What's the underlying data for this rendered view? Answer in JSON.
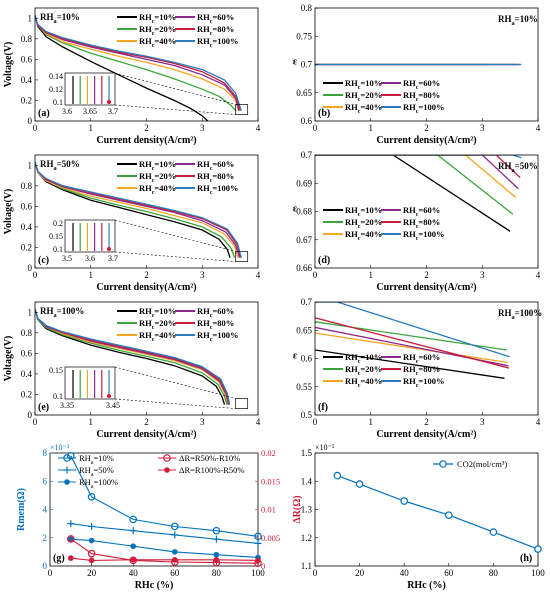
{
  "colors": {
    "rh10": "#000000",
    "rh20": "#3aa53a",
    "rh40": "#f5a623",
    "rh60": "#8e2a8e",
    "rh80": "#c81e3c",
    "rh100": "#2b7bbf",
    "blue": "#0072bd",
    "red": "#d01c3a"
  },
  "legend_names": [
    "RHc=10%",
    "RHc=20%",
    "RHc=40%",
    "RHc=60%",
    "RHc=80%",
    "RHc=100%"
  ],
  "chart_data": [
    {
      "id": "a",
      "type": "line",
      "panel_label": "(a)",
      "annotation": "RHa=10%",
      "xlabel": "Current density(A/cm²)",
      "ylabel": "Voltage(V)",
      "xlim": [
        0,
        4
      ],
      "ylim": [
        0,
        1.1
      ],
      "xticks": [
        0,
        1,
        2,
        3,
        4
      ],
      "yticks": [
        0,
        0.2,
        0.4,
        0.6,
        0.8,
        1
      ],
      "series": [
        {
          "name": "RHc=10%",
          "x": [
            0,
            0.05,
            0.2,
            0.5,
            1,
            1.5,
            2,
            2.5,
            2.8,
            3.0,
            3.1
          ],
          "y": [
            1.03,
            0.92,
            0.82,
            0.72,
            0.58,
            0.45,
            0.32,
            0.2,
            0.12,
            0.05,
            0.0
          ]
        },
        {
          "name": "RHc=20%",
          "x": [
            0,
            0.05,
            0.2,
            0.5,
            1,
            1.5,
            2,
            2.5,
            3.0,
            3.3,
            3.5,
            3.6
          ],
          "y": [
            1.03,
            0.93,
            0.84,
            0.76,
            0.66,
            0.58,
            0.5,
            0.41,
            0.31,
            0.24,
            0.16,
            0.1
          ]
        },
        {
          "name": "RHc=40%",
          "x": [
            0,
            0.05,
            0.2,
            0.5,
            1,
            1.5,
            2,
            2.5,
            3.0,
            3.4,
            3.6,
            3.65
          ],
          "y": [
            1.03,
            0.93,
            0.85,
            0.77,
            0.7,
            0.63,
            0.57,
            0.5,
            0.41,
            0.31,
            0.2,
            0.1
          ]
        },
        {
          "name": "RHc=60%",
          "x": [
            0,
            0.05,
            0.2,
            0.5,
            1,
            1.5,
            2,
            2.5,
            3.0,
            3.4,
            3.6,
            3.66
          ],
          "y": [
            1.03,
            0.93,
            0.86,
            0.79,
            0.72,
            0.66,
            0.6,
            0.54,
            0.45,
            0.35,
            0.22,
            0.1
          ]
        },
        {
          "name": "RHc=80%",
          "x": [
            0,
            0.05,
            0.2,
            0.5,
            1,
            1.5,
            2,
            2.5,
            3.0,
            3.4,
            3.6,
            3.68
          ],
          "y": [
            1.03,
            0.93,
            0.86,
            0.8,
            0.73,
            0.67,
            0.62,
            0.56,
            0.48,
            0.37,
            0.24,
            0.1
          ]
        },
        {
          "name": "RHc=100%",
          "x": [
            0,
            0.05,
            0.2,
            0.5,
            1,
            1.5,
            2,
            2.5,
            3.0,
            3.4,
            3.6,
            3.7
          ],
          "y": [
            1.03,
            0.94,
            0.87,
            0.81,
            0.74,
            0.68,
            0.63,
            0.57,
            0.5,
            0.4,
            0.27,
            0.1
          ]
        }
      ],
      "inset": {
        "xticks": [
          "3.6",
          "3.65",
          "3.7"
        ],
        "yticks": [
          "0.14",
          "0.12",
          "0.1"
        ]
      }
    },
    {
      "id": "b",
      "type": "line",
      "panel_label": "(b)",
      "annotation": "RHa=10%",
      "xlabel": "Current density(A/cm²)",
      "ylabel": "ε",
      "xlim": [
        0,
        4
      ],
      "ylim": [
        0.6,
        0.8
      ],
      "xticks": [
        0,
        1,
        2,
        3,
        4
      ],
      "yticks": [
        0.6,
        0.65,
        0.7,
        0.75,
        0.8
      ],
      "series": [
        {
          "name": "RHc=10%",
          "x": [
            0,
            3.1
          ],
          "y": [
            0.7,
            0.7
          ]
        },
        {
          "name": "RHc=20%",
          "x": [
            0,
            3.6
          ],
          "y": [
            0.7,
            0.7
          ]
        },
        {
          "name": "RHc=40%",
          "x": [
            0,
            3.65
          ],
          "y": [
            0.7,
            0.7
          ]
        },
        {
          "name": "RHc=60%",
          "x": [
            0,
            3.66
          ],
          "y": [
            0.7,
            0.7
          ]
        },
        {
          "name": "RHc=80%",
          "x": [
            0,
            3.68
          ],
          "y": [
            0.7,
            0.7
          ]
        },
        {
          "name": "RHc=100%",
          "x": [
            0,
            3.7
          ],
          "y": [
            0.7,
            0.7
          ]
        }
      ]
    },
    {
      "id": "c",
      "type": "line",
      "panel_label": "(c)",
      "annotation": "RHa=50%",
      "xlabel": "Current density(A/cm²)",
      "ylabel": "Voltage(V)",
      "xlim": [
        0,
        4
      ],
      "ylim": [
        0,
        1.1
      ],
      "xticks": [
        0,
        1,
        2,
        3,
        4
      ],
      "yticks": [
        0,
        0.2,
        0.4,
        0.6,
        0.8,
        1
      ],
      "series": [
        {
          "name": "RHc=10%",
          "x": [
            0,
            0.05,
            0.2,
            0.5,
            1,
            1.5,
            2,
            2.5,
            3.0,
            3.3,
            3.45,
            3.5
          ],
          "y": [
            1.03,
            0.93,
            0.84,
            0.76,
            0.66,
            0.59,
            0.52,
            0.45,
            0.37,
            0.28,
            0.18,
            0.1
          ]
        },
        {
          "name": "RHc=20%",
          "x": [
            0,
            0.05,
            0.2,
            0.5,
            1,
            1.5,
            2,
            2.5,
            3.0,
            3.35,
            3.52,
            3.58
          ],
          "y": [
            1.03,
            0.93,
            0.85,
            0.77,
            0.68,
            0.61,
            0.55,
            0.48,
            0.4,
            0.3,
            0.19,
            0.1
          ]
        },
        {
          "name": "RHc=40%",
          "x": [
            0,
            0.05,
            0.2,
            0.5,
            1,
            1.5,
            2,
            2.5,
            3.0,
            3.4,
            3.58,
            3.64
          ],
          "y": [
            1.03,
            0.93,
            0.85,
            0.78,
            0.7,
            0.64,
            0.58,
            0.51,
            0.44,
            0.33,
            0.21,
            0.1
          ]
        },
        {
          "name": "RHc=60%",
          "x": [
            0,
            0.05,
            0.2,
            0.5,
            1,
            1.5,
            2,
            2.5,
            3.0,
            3.42,
            3.6,
            3.67
          ],
          "y": [
            1.03,
            0.94,
            0.86,
            0.79,
            0.72,
            0.66,
            0.6,
            0.54,
            0.46,
            0.35,
            0.22,
            0.1
          ]
        },
        {
          "name": "RHc=80%",
          "x": [
            0,
            0.05,
            0.2,
            0.5,
            1,
            1.5,
            2,
            2.5,
            3.0,
            3.44,
            3.62,
            3.69
          ],
          "y": [
            1.03,
            0.94,
            0.86,
            0.8,
            0.73,
            0.67,
            0.61,
            0.55,
            0.48,
            0.37,
            0.23,
            0.1
          ]
        },
        {
          "name": "RHc=100%",
          "x": [
            0,
            0.05,
            0.2,
            0.5,
            1,
            1.5,
            2,
            2.5,
            3.0,
            3.45,
            3.63,
            3.7
          ],
          "y": [
            1.03,
            0.94,
            0.87,
            0.8,
            0.74,
            0.68,
            0.62,
            0.56,
            0.49,
            0.38,
            0.24,
            0.1
          ]
        }
      ],
      "inset": {
        "xticks": [
          "3.5",
          "3.6",
          "3.7"
        ],
        "yticks": [
          "0.2",
          "0.15",
          "0.1"
        ]
      }
    },
    {
      "id": "d",
      "type": "line",
      "panel_label": "(d)",
      "annotation": "RHa=50%",
      "xlabel": "Current density(A/cm²)",
      "ylabel": "ε",
      "xlim": [
        0,
        4
      ],
      "ylim": [
        0.66,
        0.7
      ],
      "xticks": [
        0,
        1,
        2,
        3,
        4
      ],
      "yticks": [
        0.66,
        0.67,
        0.68,
        0.69,
        0.7
      ],
      "series": [
        {
          "name": "RHc=10%",
          "x": [
            0,
            1.4,
            3.5
          ],
          "y": [
            0.7,
            0.7,
            0.673
          ]
        },
        {
          "name": "RHc=20%",
          "x": [
            0,
            2.2,
            3.55
          ],
          "y": [
            0.7,
            0.7,
            0.679
          ]
        },
        {
          "name": "RHc=40%",
          "x": [
            0,
            2.7,
            3.6
          ],
          "y": [
            0.7,
            0.7,
            0.685
          ]
        },
        {
          "name": "RHc=60%",
          "x": [
            0,
            3.0,
            3.65
          ],
          "y": [
            0.7,
            0.7,
            0.688
          ]
        },
        {
          "name": "RHc=80%",
          "x": [
            0,
            3.25,
            3.68
          ],
          "y": [
            0.7,
            0.7,
            0.692
          ]
        },
        {
          "name": "RHc=100%",
          "x": [
            0,
            3.55,
            3.7
          ],
          "y": [
            0.7,
            0.7,
            0.699
          ]
        }
      ]
    },
    {
      "id": "e",
      "type": "line",
      "panel_label": "(e)",
      "annotation": "RHa=100%",
      "xlabel": "Current density(A/cm²)",
      "ylabel": "Voltage(V)",
      "xlim": [
        0,
        4
      ],
      "ylim": [
        0,
        1.1
      ],
      "xticks": [
        0,
        1,
        2,
        3,
        4
      ],
      "yticks": [
        0,
        0.2,
        0.4,
        0.6,
        0.8,
        1
      ],
      "series": [
        {
          "name": "RHc=10%",
          "x": [
            0,
            0.05,
            0.2,
            0.5,
            1,
            1.5,
            2,
            2.5,
            3.0,
            3.25,
            3.36,
            3.4
          ],
          "y": [
            1.03,
            0.93,
            0.84,
            0.77,
            0.68,
            0.61,
            0.55,
            0.48,
            0.38,
            0.28,
            0.17,
            0.1
          ]
        },
        {
          "name": "RHc=20%",
          "x": [
            0,
            0.05,
            0.2,
            0.5,
            1,
            1.5,
            2,
            2.5,
            3.0,
            3.28,
            3.4,
            3.44
          ],
          "y": [
            1.03,
            0.93,
            0.85,
            0.78,
            0.7,
            0.63,
            0.57,
            0.51,
            0.41,
            0.3,
            0.18,
            0.1
          ]
        },
        {
          "name": "RHc=40%",
          "x": [
            0,
            0.05,
            0.2,
            0.5,
            1,
            1.5,
            2,
            2.5,
            3.0,
            3.3,
            3.42,
            3.46
          ],
          "y": [
            1.03,
            0.94,
            0.86,
            0.79,
            0.71,
            0.65,
            0.59,
            0.53,
            0.44,
            0.32,
            0.19,
            0.1
          ]
        },
        {
          "name": "RHc=60%",
          "x": [
            0,
            0.05,
            0.2,
            0.5,
            1,
            1.5,
            2,
            2.5,
            3.0,
            3.31,
            3.43,
            3.47
          ],
          "y": [
            1.03,
            0.94,
            0.86,
            0.8,
            0.72,
            0.66,
            0.6,
            0.54,
            0.45,
            0.33,
            0.2,
            0.1
          ]
        },
        {
          "name": "RHc=80%",
          "x": [
            0,
            0.05,
            0.2,
            0.5,
            1,
            1.5,
            2,
            2.5,
            3.0,
            3.32,
            3.44,
            3.48
          ],
          "y": [
            1.03,
            0.94,
            0.87,
            0.8,
            0.73,
            0.67,
            0.61,
            0.55,
            0.46,
            0.34,
            0.2,
            0.1
          ]
        },
        {
          "name": "RHc=100%",
          "x": [
            0,
            0.05,
            0.2,
            0.5,
            1,
            1.5,
            2,
            2.5,
            3.0,
            3.33,
            3.45,
            3.49
          ],
          "y": [
            1.03,
            0.94,
            0.87,
            0.81,
            0.74,
            0.68,
            0.62,
            0.56,
            0.47,
            0.35,
            0.21,
            0.1
          ]
        }
      ],
      "inset": {
        "xticks": [
          "3.35",
          "3.45"
        ],
        "yticks": [
          "0.15",
          "0.1"
        ]
      }
    },
    {
      "id": "f",
      "type": "line",
      "panel_label": "(f)",
      "annotation": "RHa=100%",
      "xlabel": "Current density(A/cm²)",
      "ylabel": "ε",
      "xlim": [
        0,
        4
      ],
      "ylim": [
        0.5,
        0.7
      ],
      "xticks": [
        0,
        1,
        2,
        3,
        4
      ],
      "yticks": [
        0.5,
        0.55,
        0.6,
        0.65,
        0.7
      ],
      "series": [
        {
          "name": "RHc=10%",
          "x": [
            0,
            3.4
          ],
          "y": [
            0.615,
            0.565
          ]
        },
        {
          "name": "RHc=20%",
          "x": [
            0,
            3.44
          ],
          "y": [
            0.665,
            0.615
          ]
        },
        {
          "name": "RHc=40%",
          "x": [
            0,
            3.46
          ],
          "y": [
            0.645,
            0.593
          ]
        },
        {
          "name": "RHc=60%",
          "x": [
            0,
            3.47
          ],
          "y": [
            0.655,
            0.587
          ]
        },
        {
          "name": "RHc=80%",
          "x": [
            0,
            3.48
          ],
          "y": [
            0.672,
            0.583
          ]
        },
        {
          "name": "RHc=100%",
          "x": [
            0,
            0.4,
            3.49
          ],
          "y": [
            0.7,
            0.7,
            0.603
          ]
        }
      ]
    },
    {
      "id": "g",
      "type": "line",
      "panel_label": "(g)",
      "xlabel": "RHc (%)",
      "ylabel_left": "Rmem(Ω)",
      "ylabel_right": "ΔR(Ω)",
      "left_multiplier": "×10⁻³",
      "x": [
        10,
        20,
        40,
        60,
        80,
        100
      ],
      "xlim": [
        0,
        100
      ],
      "ylim_left": [
        0,
        0.008
      ],
      "ylim_right": [
        0,
        0.02
      ],
      "xticks": [
        0,
        20,
        40,
        60,
        80,
        100
      ],
      "yticks_left": [
        0,
        2,
        4,
        6,
        8
      ],
      "yticks_right": [
        0,
        0.005,
        0.01,
        0.015,
        0.02
      ],
      "series": [
        {
          "name": "RHa=10%",
          "axis": "left",
          "marker": "circle",
          "values": [
            0.0078,
            0.0049,
            0.0033,
            0.0028,
            0.0025,
            0.0021
          ]
        },
        {
          "name": "RHa=50%",
          "axis": "left",
          "marker": "plus",
          "values": [
            0.003,
            0.0028,
            0.0025,
            0.0022,
            0.0019,
            0.0016
          ]
        },
        {
          "name": "RHa=100%",
          "axis": "left",
          "marker": "dot",
          "values": [
            0.0019,
            0.0018,
            0.0014,
            0.001,
            0.0008,
            0.0006
          ]
        },
        {
          "name": "ΔR=R50%-R10%",
          "axis": "right",
          "marker": "circle",
          "values": [
            0.0048,
            0.0022,
            0.001,
            0.0007,
            0.0006,
            0.0005
          ]
        },
        {
          "name": "ΔR=R100%-R50%",
          "axis": "right",
          "marker": "dot",
          "values": [
            0.0014,
            0.001,
            0.0011,
            0.0011,
            0.0011,
            0.001
          ]
        }
      ]
    },
    {
      "id": "h",
      "type": "line",
      "panel_label": "(h)",
      "xlabel": "RHc (%)",
      "ylabel": "",
      "left_multiplier": "×10⁻⁵",
      "x": [
        10,
        20,
        40,
        60,
        80,
        100
      ],
      "xlim": [
        0,
        100
      ],
      "ylim": [
        1.1,
        1.5
      ],
      "xticks": [
        0,
        20,
        40,
        60,
        80,
        100
      ],
      "yticks": [
        1.1,
        1.2,
        1.3,
        1.4,
        1.5
      ],
      "series": [
        {
          "name": "CO2(mol/cm³)",
          "marker": "circle",
          "values": [
            1.42,
            1.39,
            1.33,
            1.28,
            1.22,
            1.16
          ]
        }
      ]
    }
  ]
}
